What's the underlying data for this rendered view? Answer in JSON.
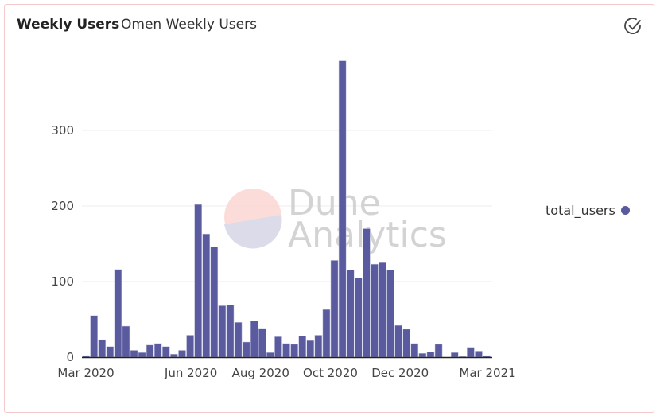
{
  "header": {
    "title": "Weekly Users",
    "subtitle": "Omen Weekly Users"
  },
  "icons": {
    "status": "check-circle-icon"
  },
  "watermark": {
    "text_line1": "Dune",
    "text_line2": "Analytics"
  },
  "colors": {
    "bar": "#5a5a9e",
    "grid": "#ececec",
    "border": "#f3c9cc"
  },
  "chart_data": {
    "type": "bar",
    "title": "Weekly Users",
    "xlabel": "",
    "ylabel": "",
    "ylim": [
      0,
      400
    ],
    "yticks": [
      0,
      100,
      200,
      300
    ],
    "ytick_labels": [
      "0",
      "100",
      "200",
      "300"
    ],
    "xtick_labels": [
      "Mar 2020",
      "Jun 2020",
      "Aug 2020",
      "Oct 2020",
      "Dec 2020",
      "Mar 2021"
    ],
    "xtick_week_index": [
      0.5,
      13.6,
      22.3,
      31.0,
      39.7,
      50.6
    ],
    "grid": true,
    "legend": {
      "position": "right",
      "entries": [
        "total_users"
      ]
    },
    "series": [
      {
        "name": "total_users",
        "values": [
          2,
          55,
          23,
          14,
          116,
          41,
          9,
          6,
          16,
          18,
          14,
          4,
          9,
          29,
          202,
          163,
          146,
          68,
          69,
          46,
          20,
          48,
          38,
          6,
          27,
          18,
          17,
          28,
          22,
          29,
          63,
          128,
          392,
          115,
          105,
          170,
          123,
          125,
          115,
          42,
          37,
          18,
          5,
          7,
          17,
          0,
          6,
          1,
          13,
          8,
          2
        ]
      }
    ]
  }
}
